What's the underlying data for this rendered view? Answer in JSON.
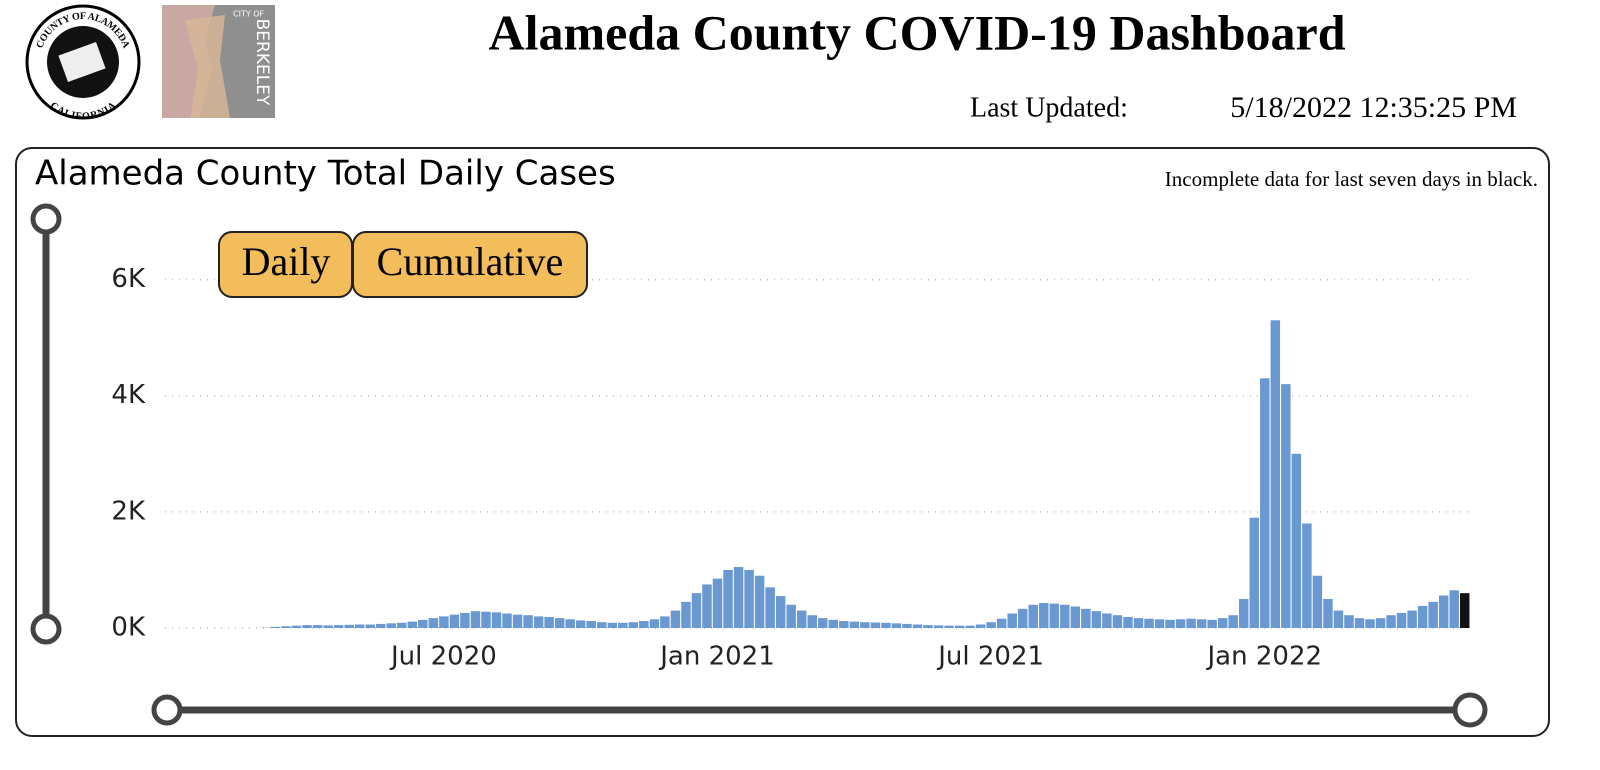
{
  "header": {
    "title": "Alameda County COVID-19 Dashboard",
    "updated_label": "Last Updated:",
    "updated_value": "5/18/2022 12:35:25 PM"
  },
  "logos": {
    "county_top": "COUNTY OF ALAMEDA",
    "county_bottom": "CALIFORNIA",
    "city_small": "CITY OF",
    "city_name": "BERKELEY"
  },
  "buttons": [
    "Daily",
    "Cumulative"
  ],
  "chart_data": {
    "type": "bar",
    "title": "Alameda County Total Daily Cases",
    "annotation": "Incomplete data for last seven days in black.",
    "color": "#6a98d0",
    "incomplete_color": "#111111",
    "grid": true,
    "ylim": [
      0,
      6200
    ],
    "yticks": [
      {
        "value": 0,
        "label": "0K"
      },
      {
        "value": 2000,
        "label": "2K"
      },
      {
        "value": 4000,
        "label": "4K"
      },
      {
        "value": 6000,
        "label": "6K"
      }
    ],
    "categories": [
      null,
      null,
      null,
      null,
      null,
      null,
      null,
      null,
      null,
      null,
      null,
      null,
      null,
      null,
      null,
      null,
      null,
      null,
      null,
      null,
      null,
      null,
      null,
      null,
      null,
      null,
      "Jul 2020",
      null,
      null,
      null,
      null,
      null,
      null,
      null,
      null,
      null,
      null,
      null,
      null,
      null,
      null,
      null,
      null,
      null,
      null,
      null,
      null,
      null,
      null,
      null,
      null,
      null,
      "Jan 2021",
      null,
      null,
      null,
      null,
      null,
      null,
      null,
      null,
      null,
      null,
      null,
      null,
      null,
      null,
      null,
      null,
      null,
      null,
      null,
      null,
      null,
      null,
      null,
      null,
      null,
      "Jul 2021",
      null,
      null,
      null,
      null,
      null,
      null,
      null,
      null,
      null,
      null,
      null,
      null,
      null,
      null,
      null,
      null,
      null,
      null,
      null,
      null,
      null,
      null,
      null,
      null,
      null,
      "Jan 2022",
      null,
      null,
      null,
      null,
      null,
      null,
      null,
      null,
      null,
      null,
      null,
      null,
      null,
      null,
      null,
      null,
      null,
      null,
      null
    ],
    "values": [
      0,
      0,
      0,
      0,
      0,
      0,
      0,
      0,
      0,
      5,
      20,
      30,
      40,
      50,
      50,
      45,
      50,
      55,
      60,
      60,
      70,
      80,
      90,
      110,
      140,
      170,
      200,
      230,
      260,
      290,
      280,
      270,
      250,
      230,
      220,
      200,
      190,
      170,
      150,
      130,
      120,
      100,
      90,
      90,
      100,
      120,
      150,
      200,
      300,
      450,
      600,
      750,
      850,
      1000,
      1050,
      1000,
      900,
      700,
      550,
      400,
      300,
      220,
      170,
      140,
      120,
      110,
      100,
      95,
      90,
      80,
      70,
      60,
      50,
      45,
      40,
      40,
      40,
      60,
      100,
      160,
      250,
      330,
      400,
      430,
      420,
      400,
      370,
      330,
      290,
      250,
      220,
      190,
      170,
      160,
      150,
      140,
      150,
      160,
      150,
      140,
      170,
      220,
      500,
      1900,
      4300,
      5300,
      4200,
      3000,
      1800,
      900,
      500,
      300,
      220,
      170,
      150,
      170,
      220,
      260,
      300,
      380,
      450,
      560,
      650,
      600
    ]
  }
}
